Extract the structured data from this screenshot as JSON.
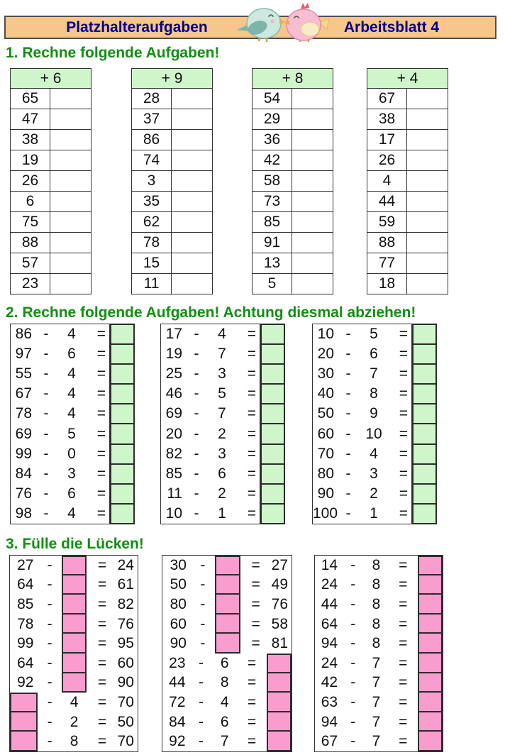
{
  "header": {
    "title_left": "Platzhalteraufgaben",
    "title_right": "Arbeitsblatt 4",
    "birds_icon": "kissing-birds"
  },
  "section1": {
    "heading": "1. Rechne folgende Aufgaben!",
    "tables": [
      {
        "operation": "+ 6",
        "operands": [
          "65",
          "47",
          "38",
          "19",
          "26",
          "6",
          "75",
          "88",
          "57",
          "23"
        ]
      },
      {
        "operation": "+ 9",
        "operands": [
          "28",
          "37",
          "86",
          "74",
          "3",
          "35",
          "62",
          "78",
          "15",
          "11"
        ]
      },
      {
        "operation": "+ 8",
        "operands": [
          "54",
          "29",
          "36",
          "42",
          "58",
          "73",
          "85",
          "91",
          "13",
          "5"
        ]
      },
      {
        "operation": "+ 4",
        "operands": [
          "67",
          "38",
          "17",
          "26",
          "4",
          "44",
          "59",
          "88",
          "77",
          "18"
        ]
      }
    ]
  },
  "section2": {
    "heading": "2. Rechne folgende Aufgaben! Achtung diesmal abziehen!",
    "minus": "-",
    "equals": "=",
    "tables": [
      {
        "rows": [
          [
            "86",
            "4"
          ],
          [
            "97",
            "6"
          ],
          [
            "55",
            "4"
          ],
          [
            "67",
            "4"
          ],
          [
            "78",
            "4"
          ],
          [
            "69",
            "5"
          ],
          [
            "99",
            "0"
          ],
          [
            "84",
            "3"
          ],
          [
            "76",
            "6"
          ],
          [
            "98",
            "4"
          ]
        ]
      },
      {
        "rows": [
          [
            "17",
            "4"
          ],
          [
            "19",
            "7"
          ],
          [
            "25",
            "3"
          ],
          [
            "46",
            "5"
          ],
          [
            "69",
            "7"
          ],
          [
            "20",
            "2"
          ],
          [
            "82",
            "3"
          ],
          [
            "85",
            "6"
          ],
          [
            "11",
            "2"
          ],
          [
            "10",
            "1"
          ]
        ]
      },
      {
        "rows": [
          [
            "10",
            "5"
          ],
          [
            "20",
            "6"
          ],
          [
            "30",
            "7"
          ],
          [
            "40",
            "8"
          ],
          [
            "50",
            "9"
          ],
          [
            "60",
            "10"
          ],
          [
            "70",
            "4"
          ],
          [
            "80",
            "3"
          ],
          [
            "90",
            "2"
          ],
          [
            "100",
            "1"
          ]
        ]
      }
    ]
  },
  "section3": {
    "heading": "3. Fülle die Lücken!",
    "minus": "-",
    "equals": "=",
    "tables": [
      {
        "rows": [
          {
            "minuend": "27",
            "subtrahend": "",
            "result": "24",
            "blank": "subtrahend"
          },
          {
            "minuend": "64",
            "subtrahend": "",
            "result": "61",
            "blank": "subtrahend"
          },
          {
            "minuend": "85",
            "subtrahend": "",
            "result": "82",
            "blank": "subtrahend"
          },
          {
            "minuend": "78",
            "subtrahend": "",
            "result": "76",
            "blank": "subtrahend"
          },
          {
            "minuend": "99",
            "subtrahend": "",
            "result": "95",
            "blank": "subtrahend"
          },
          {
            "minuend": "64",
            "subtrahend": "",
            "result": "60",
            "blank": "subtrahend"
          },
          {
            "minuend": "92",
            "subtrahend": "",
            "result": "90",
            "blank": "subtrahend"
          },
          {
            "minuend": "",
            "subtrahend": "4",
            "result": "70",
            "blank": "minuend"
          },
          {
            "minuend": "",
            "subtrahend": "2",
            "result": "50",
            "blank": "minuend"
          },
          {
            "minuend": "",
            "subtrahend": "8",
            "result": "70",
            "blank": "minuend"
          }
        ]
      },
      {
        "rows": [
          {
            "minuend": "30",
            "subtrahend": "",
            "result": "27",
            "blank": "subtrahend"
          },
          {
            "minuend": "50",
            "subtrahend": "",
            "result": "49",
            "blank": "subtrahend"
          },
          {
            "minuend": "80",
            "subtrahend": "",
            "result": "76",
            "blank": "subtrahend"
          },
          {
            "minuend": "60",
            "subtrahend": "",
            "result": "58",
            "blank": "subtrahend"
          },
          {
            "minuend": "90",
            "subtrahend": "",
            "result": "81",
            "blank": "subtrahend"
          },
          {
            "minuend": "23",
            "subtrahend": "6",
            "result": "",
            "blank": "result"
          },
          {
            "minuend": "44",
            "subtrahend": "8",
            "result": "",
            "blank": "result"
          },
          {
            "minuend": "72",
            "subtrahend": "4",
            "result": "",
            "blank": "result"
          },
          {
            "minuend": "84",
            "subtrahend": "6",
            "result": "",
            "blank": "result"
          },
          {
            "minuend": "92",
            "subtrahend": "7",
            "result": "",
            "blank": "result"
          }
        ]
      },
      {
        "rows": [
          {
            "minuend": "14",
            "subtrahend": "8",
            "result": "",
            "blank": "result"
          },
          {
            "minuend": "24",
            "subtrahend": "8",
            "result": "",
            "blank": "result"
          },
          {
            "minuend": "44",
            "subtrahend": "8",
            "result": "",
            "blank": "result"
          },
          {
            "minuend": "64",
            "subtrahend": "8",
            "result": "",
            "blank": "result"
          },
          {
            "minuend": "94",
            "subtrahend": "8",
            "result": "",
            "blank": "result"
          },
          {
            "minuend": "24",
            "subtrahend": "7",
            "result": "",
            "blank": "result"
          },
          {
            "minuend": "42",
            "subtrahend": "7",
            "result": "",
            "blank": "result"
          },
          {
            "minuend": "63",
            "subtrahend": "7",
            "result": "",
            "blank": "result"
          },
          {
            "minuend": "94",
            "subtrahend": "7",
            "result": "",
            "blank": "result"
          },
          {
            "minuend": "67",
            "subtrahend": "7",
            "result": "",
            "blank": "result"
          }
        ]
      }
    ]
  },
  "colors": {
    "banner_bg": "#f6c68a",
    "title_text": "#00008b",
    "heading_green": "#108f10",
    "cell_green": "#cff5cb",
    "cell_pink": "#f99cce",
    "table_border": "#333333"
  }
}
